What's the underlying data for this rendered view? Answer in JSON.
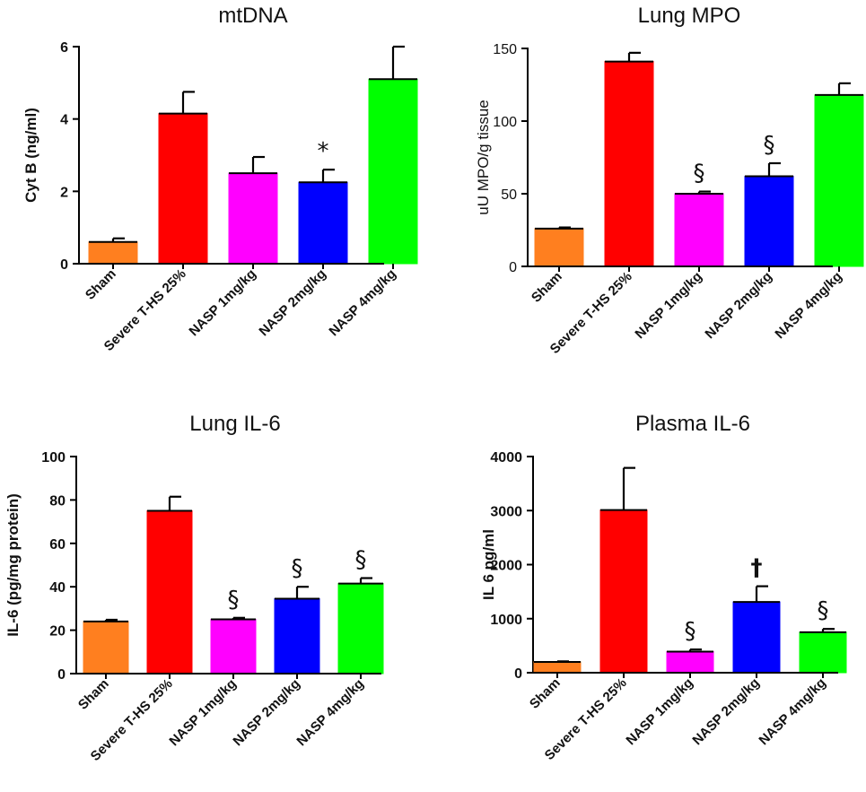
{
  "figure": {
    "categories": [
      "Sham",
      "Severe T-HS 25%",
      "NASP 1mg/kg",
      "NASP 2mg/kg",
      "NASP 4mg/kg"
    ],
    "colors": [
      "#ff7f1f",
      "#ff0000",
      "#ff00ff",
      "#0000ff",
      "#00ff00"
    ]
  },
  "chart_data": [
    {
      "id": "mtdna",
      "type": "bar",
      "title": "mtDNA",
      "ylabel": "Cyt B (ng/ml)",
      "ylabel_bold": true,
      "ylim": [
        0,
        6
      ],
      "yticks": [
        0,
        2,
        4,
        6
      ],
      "categories": [
        "Sham",
        "Severe T-HS 25%",
        "NASP 1mg/kg",
        "NASP 2mg/kg",
        "NASP 4mg/kg"
      ],
      "values": [
        0.6,
        4.15,
        2.5,
        2.25,
        5.1
      ],
      "errors": [
        0.1,
        0.6,
        0.45,
        0.35,
        0.9
      ],
      "annotations": [
        "",
        "",
        "",
        "*",
        ""
      ]
    },
    {
      "id": "lung-mpo",
      "type": "bar",
      "title": "Lung MPO",
      "ylabel": "uU MPO/g tissue",
      "ylabel_bold": false,
      "ylim": [
        0,
        150
      ],
      "yticks": [
        0,
        50,
        100,
        150
      ],
      "categories": [
        "Sham",
        "Severe T-HS 25%",
        "NASP 1mg/kg",
        "NASP 2mg/kg",
        "NASP 4mg/kg"
      ],
      "values": [
        26,
        141,
        50,
        62,
        118
      ],
      "errors": [
        0.8,
        6,
        1.5,
        9,
        8
      ],
      "annotations": [
        "",
        "",
        "§",
        "§",
        ""
      ]
    },
    {
      "id": "lung-il6",
      "type": "bar",
      "title": "Lung IL-6",
      "ylabel": "IL-6 (pg/mg protein)",
      "ylabel_bold": true,
      "ylim": [
        0,
        100
      ],
      "yticks": [
        0,
        20,
        40,
        60,
        80,
        100
      ],
      "categories": [
        "Sham",
        "Severe T-HS 25%",
        "NASP 1mg/kg",
        "NASP 2mg/kg",
        "NASP 4mg/kg"
      ],
      "values": [
        24,
        75,
        25,
        34.5,
        41.5
      ],
      "errors": [
        0.8,
        6.5,
        0.7,
        5.5,
        2.5
      ],
      "annotations": [
        "",
        "",
        "§",
        "§",
        "§"
      ]
    },
    {
      "id": "plasma-il6",
      "type": "bar",
      "title": "Plasma IL-6",
      "ylabel": "IL 6 pg/ml",
      "ylabel_bold": true,
      "ylim": [
        0,
        4000
      ],
      "yticks": [
        0,
        1000,
        2000,
        3000,
        4000
      ],
      "categories": [
        "Sham",
        "Severe T-HS 25%",
        "NASP 1mg/kg",
        "NASP 2mg/kg",
        "NASP 4mg/kg"
      ],
      "values": [
        200,
        3010,
        390,
        1310,
        750
      ],
      "errors": [
        10,
        780,
        40,
        290,
        60
      ],
      "annotations": [
        "",
        "",
        "§",
        "†",
        "§"
      ]
    }
  ]
}
